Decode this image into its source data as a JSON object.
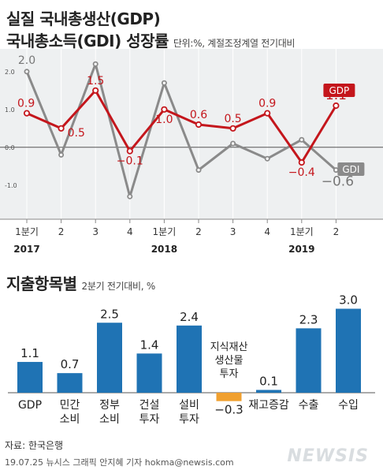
{
  "titles": {
    "line1": "실질 국내총생산(GDP)",
    "line2": "국내총소득(GDI) 성장률",
    "unit": "단위:%, 계절조정계열 전기대비"
  },
  "chart_data": [
    {
      "type": "line",
      "x": [
        "1분기",
        "2",
        "3",
        "4",
        "1분기",
        "2",
        "3",
        "4",
        "1분기",
        "2"
      ],
      "year_labels": [
        {
          "label": "2017",
          "index": 0
        },
        {
          "label": "2018",
          "index": 4
        },
        {
          "label": "2019",
          "index": 8
        }
      ],
      "yticks": [
        "2.0",
        "1.0",
        "0.0",
        "-1.0"
      ],
      "ylim": [
        -1.9,
        2.6
      ],
      "series": [
        {
          "name": "GDP",
          "color": "#c4161c",
          "values": [
            0.9,
            0.5,
            1.5,
            -0.1,
            1.0,
            0.6,
            0.5,
            0.9,
            -0.4,
            1.1
          ],
          "labels": [
            "0.9",
            "0.5",
            "1.5",
            "−0.1",
            "1.0",
            "0.6",
            "0.5",
            "0.9",
            "−0.4",
            "1.1"
          ]
        },
        {
          "name": "GDI",
          "color": "#8a8a8a",
          "values": [
            2.0,
            -0.2,
            2.2,
            -1.3,
            1.7,
            -0.6,
            0.1,
            -0.3,
            0.2,
            -0.6
          ],
          "labels": [
            "2.0",
            "",
            "",
            "",
            "",
            "",
            "",
            "",
            "",
            "−0.6"
          ]
        }
      ]
    },
    {
      "type": "bar",
      "title": "지출항목별",
      "unit": "2분기 전기대비, %",
      "categories": [
        [
          "GDP"
        ],
        [
          "민간",
          "소비"
        ],
        [
          "정부",
          "소비"
        ],
        [
          "건설",
          "투자"
        ],
        [
          "설비",
          "투자"
        ],
        [
          "지식재산",
          "생산물",
          "투자"
        ],
        [
          "재고증감"
        ],
        [
          "수출"
        ],
        [
          "수입"
        ]
      ],
      "values": [
        1.1,
        0.7,
        2.5,
        1.4,
        2.4,
        -0.3,
        0.1,
        2.3,
        3.0
      ],
      "value_labels": [
        "1.1",
        "0.7",
        "2.5",
        "1.4",
        "2.4",
        "−0.3",
        "0.1",
        "2.3",
        "3.0"
      ],
      "colors": {
        "positive": "#1f73b4",
        "negative": "#f0a030"
      }
    }
  ],
  "footer": {
    "source": "자료: 한국은행",
    "credit": "19.07.25 뉴시스 그래픽 안지혜 기자 hokma@newsis.com",
    "logo": "NEWSIS"
  }
}
